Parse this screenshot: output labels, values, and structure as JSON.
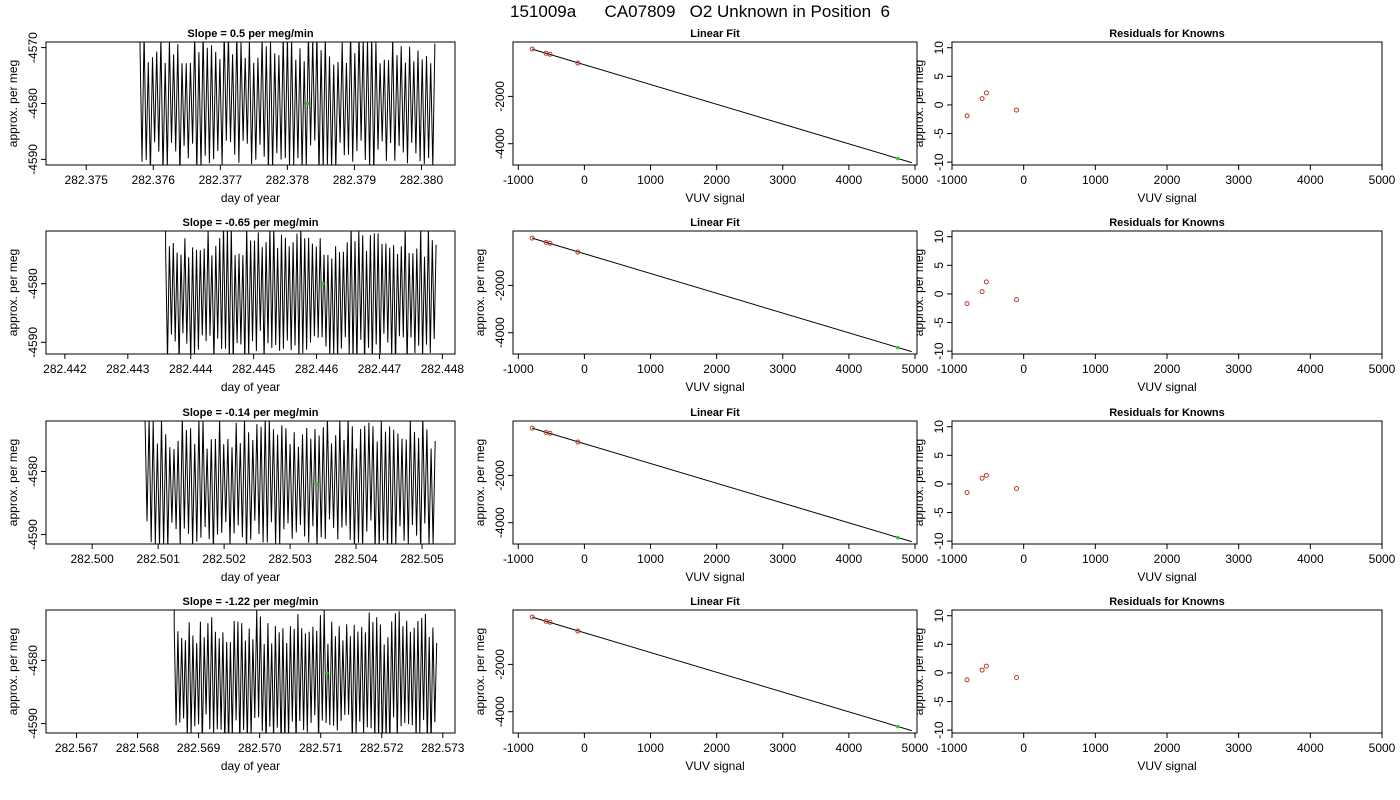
{
  "figure_title": "151009a      CA07809   O2 Unknown in Position  6",
  "colors": {
    "trace": "#000000",
    "known_points": "#c0392b",
    "unknown_point": "#22cc22"
  },
  "chart_data": [
    {
      "type": "line",
      "title": "Slope =  0.5  per meg/min",
      "xlabel": "day of year",
      "ylabel": "approx. per meg",
      "xlim": [
        282.3744,
        282.3805
      ],
      "ylim": [
        -4591,
        -4569
      ],
      "xticks": [
        282.375,
        282.376,
        282.377,
        282.378,
        282.379,
        282.38
      ],
      "yticks": [
        -4570,
        -4580,
        -4590
      ],
      "trace": {
        "x_start": 282.3758,
        "x_end": 282.3802,
        "center": -4580,
        "amplitude": 12,
        "cycles": 70
      },
      "marker": {
        "x": 282.3783,
        "y": -4580,
        "color": "green"
      }
    },
    {
      "type": "scatter",
      "title": "Linear Fit",
      "xlabel": "VUV signal",
      "ylabel": "",
      "xlim": [
        -1080,
        5030
      ],
      "ylim": [
        -4900,
        300
      ],
      "xticks": [
        -1000,
        0,
        1000,
        2000,
        3000,
        4000,
        5000
      ],
      "yticks": [
        -2000,
        -4000
      ],
      "knowns": {
        "x": [
          -790,
          -580,
          -520,
          -100
        ],
        "y": [
          0,
          -180,
          -220,
          -590
        ]
      },
      "unknown": {
        "x": 4740,
        "y": -4630
      },
      "fit_line": {
        "x": [
          -790,
          4950
        ],
        "y": [
          0,
          -4800
        ]
      }
    },
    {
      "type": "scatter",
      "title": "Residuals for Knowns",
      "xlabel": "VUV signal",
      "ylabel": "approx. per meg",
      "xlim": [
        -1000,
        5000
      ],
      "ylim": [
        -10.5,
        11
      ],
      "xticks": [
        -1000,
        0,
        1000,
        2000,
        3000,
        4000,
        5000
      ],
      "yticks": [
        10,
        5,
        0,
        -5,
        -10
      ],
      "x": [
        -790,
        -580,
        -520,
        -100
      ],
      "y": [
        -1.9,
        1.1,
        2.1,
        -0.9
      ]
    },
    {
      "type": "line",
      "title": "Slope =  -0.65  per meg/min",
      "xlabel": "day of year",
      "ylabel": "approx. per meg",
      "xlim": [
        282.4417,
        282.4482
      ],
      "ylim": [
        -4592,
        -4571
      ],
      "xticks": [
        282.442,
        282.443,
        282.444,
        282.445,
        282.446,
        282.447,
        282.448
      ],
      "yticks": [
        -4580,
        -4590
      ],
      "trace": {
        "x_start": 282.4436,
        "x_end": 282.4479,
        "center": -4582,
        "amplitude": 11,
        "cycles": 70
      },
      "marker": {
        "x": 282.4461,
        "y": -4580,
        "color": "green"
      }
    },
    {
      "type": "scatter",
      "title": "Linear Fit",
      "xlabel": "VUV signal",
      "ylabel": "approx. per meg",
      "xlim": [
        -1080,
        5030
      ],
      "ylim": [
        -4900,
        300
      ],
      "xticks": [
        -1000,
        0,
        1000,
        2000,
        3000,
        4000,
        5000
      ],
      "yticks": [
        -2000,
        -4000
      ],
      "knowns": {
        "x": [
          -790,
          -580,
          -520,
          -100
        ],
        "y": [
          0,
          -180,
          -220,
          -590
        ]
      },
      "unknown": {
        "x": 4740,
        "y": -4630
      },
      "fit_line": {
        "x": [
          -790,
          4950
        ],
        "y": [
          0,
          -4800
        ]
      }
    },
    {
      "type": "scatter",
      "title": "Residuals for Knowns",
      "xlabel": "VUV signal",
      "ylabel": "approx. per meg",
      "xlim": [
        -1000,
        5000
      ],
      "ylim": [
        -10.5,
        11
      ],
      "xticks": [
        -1000,
        0,
        1000,
        2000,
        3000,
        4000,
        5000
      ],
      "yticks": [
        10,
        5,
        0,
        -5,
        -10
      ],
      "x": [
        -790,
        -580,
        -520,
        -100
      ],
      "y": [
        -1.7,
        0.4,
        2.1,
        -1.0
      ]
    },
    {
      "type": "line",
      "title": "Slope =  -0.14  per meg/min",
      "xlabel": "day of year",
      "ylabel": "approx. per meg",
      "xlim": [
        282.4993,
        282.5055
      ],
      "ylim": [
        -4591.5,
        -4572
      ],
      "xticks": [
        282.5,
        282.501,
        282.502,
        282.503,
        282.504,
        282.505
      ],
      "yticks": [
        -4580,
        -4590
      ],
      "trace": {
        "x_start": 282.5008,
        "x_end": 282.5052,
        "center": -4582,
        "amplitude": 10,
        "cycles": 70
      },
      "marker": {
        "x": 282.5034,
        "y": -4582,
        "color": "green"
      }
    },
    {
      "type": "scatter",
      "title": "Linear Fit",
      "xlabel": "VUV signal",
      "ylabel": "approx. per meg",
      "xlim": [
        -1080,
        5030
      ],
      "ylim": [
        -4900,
        300
      ],
      "xticks": [
        -1000,
        0,
        1000,
        2000,
        3000,
        4000,
        5000
      ],
      "yticks": [
        -2000,
        -4000
      ],
      "knowns": {
        "x": [
          -790,
          -580,
          -520,
          -100
        ],
        "y": [
          0,
          -180,
          -220,
          -590
        ]
      },
      "unknown": {
        "x": 4740,
        "y": -4630
      },
      "fit_line": {
        "x": [
          -790,
          4950
        ],
        "y": [
          0,
          -4800
        ]
      }
    },
    {
      "type": "scatter",
      "title": "Residuals for Knowns",
      "xlabel": "VUV signal",
      "ylabel": "approx. per meg",
      "xlim": [
        -1000,
        5000
      ],
      "ylim": [
        -10.5,
        11
      ],
      "xticks": [
        -1000,
        0,
        1000,
        2000,
        3000,
        4000,
        5000
      ],
      "yticks": [
        10,
        5,
        0,
        -5,
        -10
      ],
      "x": [
        -790,
        -580,
        -520,
        -100
      ],
      "y": [
        -1.5,
        1.0,
        1.5,
        -0.8
      ]
    },
    {
      "type": "line",
      "title": "Slope =  -1.22  per meg/min",
      "xlabel": "day of year",
      "ylabel": "approx. per meg",
      "xlim": [
        282.5665,
        282.5732
      ],
      "ylim": [
        -4591.5,
        -4572
      ],
      "xticks": [
        282.567,
        282.568,
        282.569,
        282.57,
        282.571,
        282.572,
        282.573
      ],
      "yticks": [
        -4580,
        -4590
      ],
      "trace": {
        "x_start": 282.5686,
        "x_end": 282.5729,
        "center": -4583,
        "amplitude": 10,
        "cycles": 70
      },
      "marker": {
        "x": 282.5711,
        "y": -4582,
        "color": "green"
      }
    },
    {
      "type": "scatter",
      "title": "Linear Fit",
      "xlabel": "VUV signal",
      "ylabel": "approx. per meg",
      "xlim": [
        -1080,
        5030
      ],
      "ylim": [
        -4900,
        300
      ],
      "xticks": [
        -1000,
        0,
        1000,
        2000,
        3000,
        4000,
        5000
      ],
      "yticks": [
        -2000,
        -4000
      ],
      "knowns": {
        "x": [
          -790,
          -580,
          -520,
          -100
        ],
        "y": [
          0,
          -180,
          -220,
          -590
        ]
      },
      "unknown": {
        "x": 4740,
        "y": -4630
      },
      "fit_line": {
        "x": [
          -790,
          4950
        ],
        "y": [
          0,
          -4800
        ]
      }
    },
    {
      "type": "scatter",
      "title": "Residuals for Knowns",
      "xlabel": "VUV signal",
      "ylabel": "approx. per meg",
      "xlim": [
        -1000,
        5000
      ],
      "ylim": [
        -10.5,
        11
      ],
      "xticks": [
        -1000,
        0,
        1000,
        2000,
        3000,
        4000,
        5000
      ],
      "yticks": [
        10,
        5,
        0,
        -5,
        -10
      ],
      "x": [
        -790,
        -580,
        -520,
        -100
      ],
      "y": [
        -1.2,
        0.5,
        1.2,
        -0.8
      ]
    }
  ]
}
